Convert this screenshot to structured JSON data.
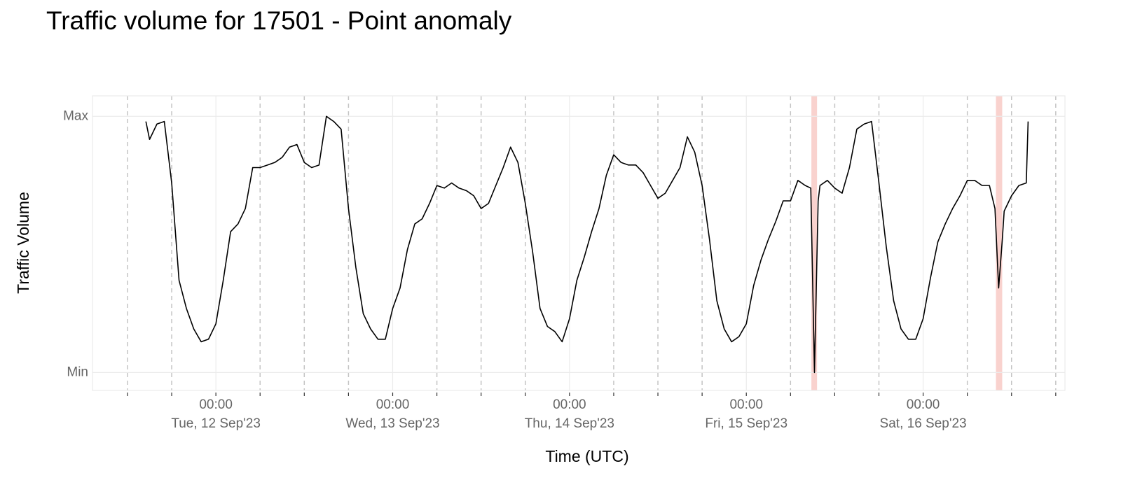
{
  "chart_data": {
    "type": "line",
    "title": "Traffic volume for 17501 - Point anomaly",
    "x_label": "Time (UTC)",
    "y_label": "Traffic Volume",
    "color": "#000000",
    "anomaly_color": "#f9d2ce",
    "xlim": [
      "2023-09-11 07:15",
      "2023-09-16 19:15"
    ],
    "ylim": [
      -0.07,
      1.08
    ],
    "yticks": [
      {
        "value": 0,
        "label": "Min"
      },
      {
        "value": 1,
        "label": "Max"
      }
    ],
    "xticks": [
      {
        "value": "2023-09-12 00:00",
        "label": [
          "00:00",
          "Tue, 12 Sep'23"
        ]
      },
      {
        "value": "2023-09-13 00:00",
        "label": [
          "00:00",
          "Wed, 13 Sep'23"
        ]
      },
      {
        "value": "2023-09-14 00:00",
        "label": [
          "00:00",
          "Thu, 14 Sep'23"
        ]
      },
      {
        "value": "2023-09-15 00:00",
        "label": [
          "00:00",
          "Fri, 15 Sep'23"
        ]
      },
      {
        "value": "2023-09-16 00:00",
        "label": [
          "00:00",
          "Sat, 16 Sep'23"
        ]
      }
    ],
    "xticks_minor": [
      "2023-09-11 12:00",
      "2023-09-11 18:00",
      "2023-09-12 06:00",
      "2023-09-12 12:00",
      "2023-09-12 18:00",
      "2023-09-13 06:00",
      "2023-09-13 12:00",
      "2023-09-13 18:00",
      "2023-09-14 06:00",
      "2023-09-14 12:00",
      "2023-09-14 18:00",
      "2023-09-15 06:00",
      "2023-09-15 12:00",
      "2023-09-15 18:00",
      "2023-09-16 06:00",
      "2023-09-16 12:00",
      "2023-09-16 18:00"
    ],
    "anomalies": [
      {
        "start": "2023-09-15 08:50",
        "end": "2023-09-15 09:36"
      },
      {
        "start": "2023-09-16 09:53",
        "end": "2023-09-16 10:44"
      }
    ],
    "x": [
      "2023-09-11 14:30",
      "2023-09-11 15:00",
      "2023-09-11 16:00",
      "2023-09-11 17:00",
      "2023-09-11 18:00",
      "2023-09-11 19:00",
      "2023-09-11 20:00",
      "2023-09-11 21:00",
      "2023-09-11 22:00",
      "2023-09-11 23:00",
      "2023-09-12 00:00",
      "2023-09-12 01:00",
      "2023-09-12 02:00",
      "2023-09-12 03:00",
      "2023-09-12 04:00",
      "2023-09-12 05:00",
      "2023-09-12 06:00",
      "2023-09-12 07:00",
      "2023-09-12 08:00",
      "2023-09-12 09:00",
      "2023-09-12 10:00",
      "2023-09-12 11:00",
      "2023-09-12 12:00",
      "2023-09-12 13:00",
      "2023-09-12 14:00",
      "2023-09-12 15:00",
      "2023-09-12 16:00",
      "2023-09-12 17:00",
      "2023-09-12 18:00",
      "2023-09-12 19:00",
      "2023-09-12 20:00",
      "2023-09-12 21:00",
      "2023-09-12 22:00",
      "2023-09-12 23:00",
      "2023-09-13 00:00",
      "2023-09-13 01:00",
      "2023-09-13 02:00",
      "2023-09-13 03:00",
      "2023-09-13 04:00",
      "2023-09-13 05:00",
      "2023-09-13 06:00",
      "2023-09-13 07:00",
      "2023-09-13 08:00",
      "2023-09-13 09:00",
      "2023-09-13 10:00",
      "2023-09-13 11:00",
      "2023-09-13 12:00",
      "2023-09-13 13:00",
      "2023-09-13 14:00",
      "2023-09-13 15:00",
      "2023-09-13 16:00",
      "2023-09-13 17:00",
      "2023-09-13 18:00",
      "2023-09-13 19:00",
      "2023-09-13 20:00",
      "2023-09-13 21:00",
      "2023-09-13 22:00",
      "2023-09-13 23:00",
      "2023-09-14 00:00",
      "2023-09-14 01:00",
      "2023-09-14 02:00",
      "2023-09-14 03:00",
      "2023-09-14 04:00",
      "2023-09-14 05:00",
      "2023-09-14 06:00",
      "2023-09-14 07:00",
      "2023-09-14 08:00",
      "2023-09-14 09:00",
      "2023-09-14 10:00",
      "2023-09-14 11:00",
      "2023-09-14 12:00",
      "2023-09-14 13:00",
      "2023-09-14 14:00",
      "2023-09-14 15:00",
      "2023-09-14 16:00",
      "2023-09-14 17:00",
      "2023-09-14 18:00",
      "2023-09-14 19:00",
      "2023-09-14 20:00",
      "2023-09-14 21:00",
      "2023-09-14 22:00",
      "2023-09-14 23:00",
      "2023-09-15 00:00",
      "2023-09-15 01:00",
      "2023-09-15 02:00",
      "2023-09-15 03:00",
      "2023-09-15 04:00",
      "2023-09-15 05:00",
      "2023-09-15 06:00",
      "2023-09-15 07:00",
      "2023-09-15 08:00",
      "2023-09-15 08:45",
      "2023-09-15 09:15",
      "2023-09-15 09:45",
      "2023-09-15 10:00",
      "2023-09-15 11:00",
      "2023-09-15 12:00",
      "2023-09-15 13:00",
      "2023-09-15 14:00",
      "2023-09-15 15:00",
      "2023-09-15 16:00",
      "2023-09-15 17:00",
      "2023-09-15 18:00",
      "2023-09-15 19:00",
      "2023-09-15 20:00",
      "2023-09-15 21:00",
      "2023-09-15 22:00",
      "2023-09-15 23:00",
      "2023-09-16 00:00",
      "2023-09-16 01:00",
      "2023-09-16 02:00",
      "2023-09-16 03:00",
      "2023-09-16 04:00",
      "2023-09-16 05:00",
      "2023-09-16 06:00",
      "2023-09-16 07:00",
      "2023-09-16 08:00",
      "2023-09-16 09:00",
      "2023-09-16 09:45",
      "2023-09-16 10:15",
      "2023-09-16 10:45",
      "2023-09-16 11:00",
      "2023-09-16 12:00",
      "2023-09-16 13:00",
      "2023-09-16 14:00",
      "2023-09-16 14:15"
    ],
    "values": [
      0.98,
      0.91,
      0.97,
      0.98,
      0.74,
      0.36,
      0.25,
      0.17,
      0.12,
      0.13,
      0.19,
      0.36,
      0.55,
      0.58,
      0.64,
      0.8,
      0.8,
      0.81,
      0.82,
      0.84,
      0.88,
      0.89,
      0.82,
      0.8,
      0.81,
      1.0,
      0.98,
      0.95,
      0.64,
      0.41,
      0.23,
      0.17,
      0.13,
      0.13,
      0.25,
      0.33,
      0.48,
      0.58,
      0.6,
      0.66,
      0.73,
      0.72,
      0.74,
      0.72,
      0.71,
      0.69,
      0.64,
      0.66,
      0.73,
      0.8,
      0.88,
      0.82,
      0.66,
      0.47,
      0.25,
      0.18,
      0.16,
      0.12,
      0.21,
      0.36,
      0.45,
      0.55,
      0.64,
      0.77,
      0.85,
      0.82,
      0.81,
      0.81,
      0.78,
      0.73,
      0.68,
      0.7,
      0.75,
      0.8,
      0.92,
      0.86,
      0.73,
      0.52,
      0.28,
      0.17,
      0.12,
      0.14,
      0.19,
      0.34,
      0.44,
      0.52,
      0.59,
      0.67,
      0.67,
      0.75,
      0.73,
      0.72,
      0.0,
      0.67,
      0.73,
      0.75,
      0.72,
      0.7,
      0.8,
      0.95,
      0.97,
      0.98,
      0.74,
      0.49,
      0.28,
      0.17,
      0.13,
      0.13,
      0.21,
      0.37,
      0.51,
      0.58,
      0.64,
      0.69,
      0.75,
      0.75,
      0.73,
      0.73,
      0.64,
      0.33,
      0.52,
      0.63,
      0.69,
      0.73,
      0.74,
      0.98
    ]
  }
}
